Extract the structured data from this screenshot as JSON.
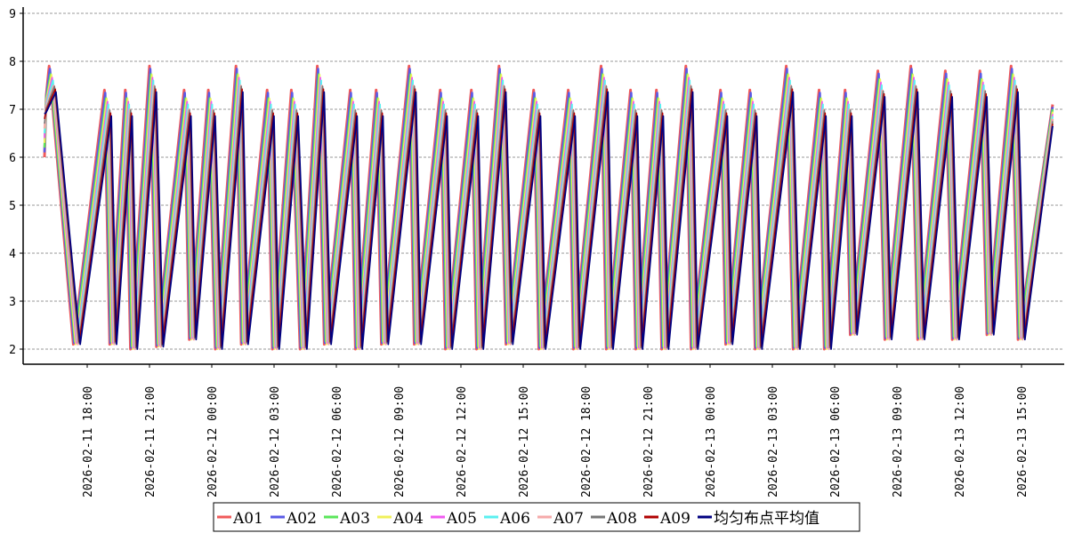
{
  "chart_data": {
    "type": "line",
    "title": "",
    "xlabel": "",
    "ylabel": "",
    "ylim": [
      1.7,
      9.1
    ],
    "y_ticks": [
      2,
      3,
      4,
      5,
      6,
      7,
      8,
      9
    ],
    "grid": "horizontal dashed",
    "legend_position": "bottom-center",
    "x_start": "2026-02-11 16:00",
    "x_end": "2026-02-13 16:30",
    "x_tick_labels": [
      "2026-02-11 18:00",
      "2026-02-11 21:00",
      "2026-02-12 00:00",
      "2026-02-12 03:00",
      "2026-02-12 06:00",
      "2026-02-12 09:00",
      "2026-02-12 12:00",
      "2026-02-12 15:00",
      "2026-02-12 18:00",
      "2026-02-12 21:00",
      "2026-02-13 00:00",
      "2026-02-13 03:00",
      "2026-02-13 06:00",
      "2026-02-13 09:00",
      "2026-02-13 12:00",
      "2026-02-13 15:00"
    ],
    "series": [
      {
        "name": "A01",
        "color": "#f05a5a",
        "width": 3.0
      },
      {
        "name": "A02",
        "color": "#5a5ae6",
        "width": 2.6
      },
      {
        "name": "A03",
        "color": "#5ae65a",
        "width": 2.4
      },
      {
        "name": "A04",
        "color": "#f0f05a",
        "width": 2.0
      },
      {
        "name": "A05",
        "color": "#f05af0",
        "width": 1.8
      },
      {
        "name": "A06",
        "color": "#5af0f0",
        "width": 2.0
      },
      {
        "name": "A07",
        "color": "#f5aaaa",
        "width": 2.4
      },
      {
        "name": "A08",
        "color": "#777777",
        "width": 1.6
      },
      {
        "name": "A09",
        "color": "#b00000",
        "width": 1.6
      },
      {
        "name": "均匀布点平均值",
        "color": "#000080",
        "width": 1.8
      }
    ],
    "cycles": [
      {
        "peak_time": "2026-02-11 16:10",
        "peak": 7.9,
        "trough_time": "2026-02-11 17:20",
        "trough": 2.1
      },
      {
        "peak_time": "2026-02-11 18:50",
        "peak": 7.4,
        "trough_time": "2026-02-11 19:05",
        "trough": 2.1
      },
      {
        "peak_time": "2026-02-11 19:50",
        "peak": 7.4,
        "trough_time": "2026-02-11 20:05",
        "trough": 2.0
      },
      {
        "peak_time": "2026-02-11 21:00",
        "peak": 7.9,
        "trough_time": "2026-02-11 21:20",
        "trough": 2.05
      },
      {
        "peak_time": "2026-02-11 22:40",
        "peak": 7.4,
        "trough_time": "2026-02-11 22:55",
        "trough": 2.2
      },
      {
        "peak_time": "2026-02-11 23:50",
        "peak": 7.4,
        "trough_time": "2026-02-12 00:10",
        "trough": 2.0
      },
      {
        "peak_time": "2026-02-12 01:10",
        "peak": 7.9,
        "trough_time": "2026-02-12 01:25",
        "trough": 2.1
      },
      {
        "peak_time": "2026-02-12 02:40",
        "peak": 7.4,
        "trough_time": "2026-02-12 02:55",
        "trough": 2.0
      },
      {
        "peak_time": "2026-02-12 03:50",
        "peak": 7.4,
        "trough_time": "2026-02-12 04:15",
        "trough": 2.0
      },
      {
        "peak_time": "2026-02-12 05:05",
        "peak": 7.9,
        "trough_time": "2026-02-12 05:25",
        "trough": 2.1
      },
      {
        "peak_time": "2026-02-12 06:40",
        "peak": 7.4,
        "trough_time": "2026-02-12 06:55",
        "trough": 2.0
      },
      {
        "peak_time": "2026-02-12 07:55",
        "peak": 7.4,
        "trough_time": "2026-02-12 08:10",
        "trough": 2.1
      },
      {
        "peak_time": "2026-02-12 09:30",
        "peak": 7.9,
        "trough_time": "2026-02-12 09:45",
        "trough": 2.1
      },
      {
        "peak_time": "2026-02-12 11:00",
        "peak": 7.4,
        "trough_time": "2026-02-12 11:15",
        "trough": 2.0
      },
      {
        "peak_time": "2026-02-12 12:30",
        "peak": 7.4,
        "trough_time": "2026-02-12 12:45",
        "trough": 2.0
      },
      {
        "peak_time": "2026-02-12 13:50",
        "peak": 7.9,
        "trough_time": "2026-02-12 14:10",
        "trough": 2.1
      },
      {
        "peak_time": "2026-02-12 15:30",
        "peak": 7.4,
        "trough_time": "2026-02-12 15:45",
        "trough": 2.0
      },
      {
        "peak_time": "2026-02-12 17:10",
        "peak": 7.4,
        "trough_time": "2026-02-12 17:25",
        "trough": 2.0
      },
      {
        "peak_time": "2026-02-12 18:45",
        "peak": 7.9,
        "trough_time": "2026-02-12 19:00",
        "trough": 2.0
      },
      {
        "peak_time": "2026-02-12 20:10",
        "peak": 7.4,
        "trough_time": "2026-02-12 20:25",
        "trough": 2.0
      },
      {
        "peak_time": "2026-02-12 21:25",
        "peak": 7.4,
        "trough_time": "2026-02-12 21:40",
        "trough": 2.0
      },
      {
        "peak_time": "2026-02-12 22:50",
        "peak": 7.9,
        "trough_time": "2026-02-12 23:05",
        "trough": 2.0
      },
      {
        "peak_time": "2026-02-13 00:30",
        "peak": 7.4,
        "trough_time": "2026-02-13 00:45",
        "trough": 2.1
      },
      {
        "peak_time": "2026-02-13 01:55",
        "peak": 7.4,
        "trough_time": "2026-02-13 02:10",
        "trough": 2.0
      },
      {
        "peak_time": "2026-02-13 03:40",
        "peak": 7.9,
        "trough_time": "2026-02-13 04:00",
        "trough": 2.0
      },
      {
        "peak_time": "2026-02-13 05:15",
        "peak": 7.4,
        "trough_time": "2026-02-13 05:30",
        "trough": 2.0
      },
      {
        "peak_time": "2026-02-13 06:30",
        "peak": 7.4,
        "trough_time": "2026-02-13 06:45",
        "trough": 2.3
      },
      {
        "peak_time": "2026-02-13 08:05",
        "peak": 7.8,
        "trough_time": "2026-02-13 08:25",
        "trough": 2.2
      },
      {
        "peak_time": "2026-02-13 09:40",
        "peak": 7.9,
        "trough_time": "2026-02-13 10:00",
        "trough": 2.2
      },
      {
        "peak_time": "2026-02-13 11:20",
        "peak": 7.8,
        "trough_time": "2026-02-13 11:40",
        "trough": 2.2
      },
      {
        "peak_time": "2026-02-13 13:00",
        "peak": 7.8,
        "trough_time": "2026-02-13 13:20",
        "trough": 2.3
      },
      {
        "peak_time": "2026-02-13 14:30",
        "peak": 7.9,
        "trough_time": "2026-02-13 14:50",
        "trough": 2.2
      }
    ],
    "final_value": {
      "time": "2026-02-13 16:30",
      "value": 7.1
    }
  }
}
